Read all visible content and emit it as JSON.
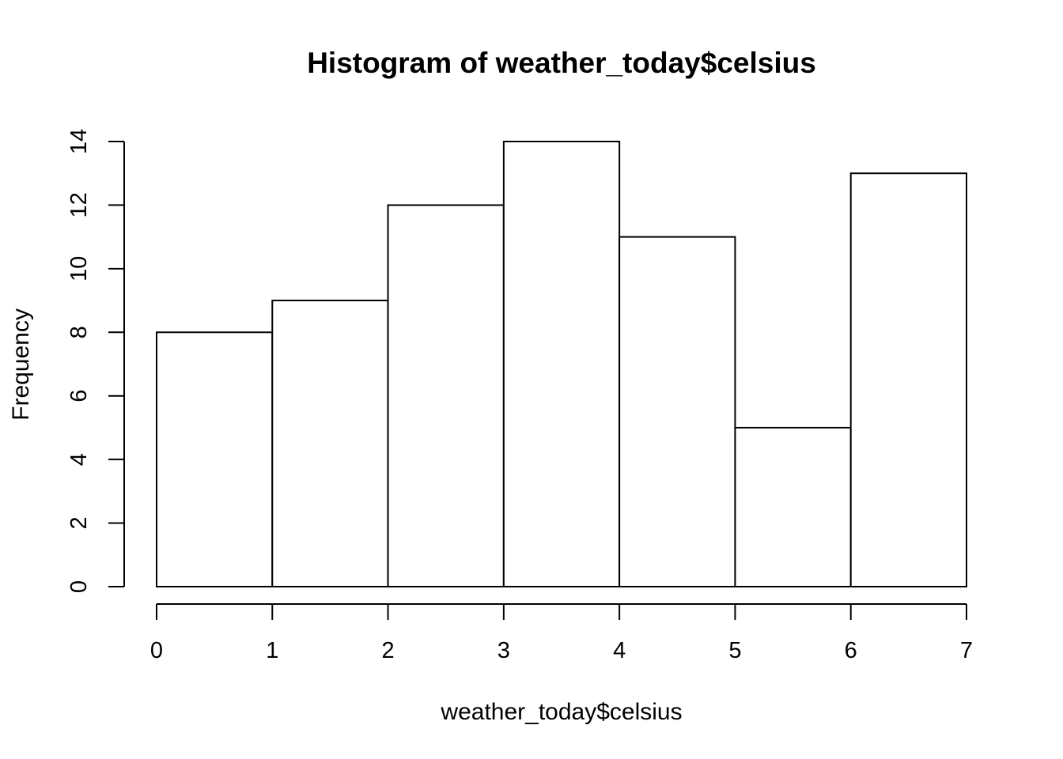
{
  "chart_data": {
    "type": "bar",
    "title": "Histogram of weather_today$celsius",
    "xlabel": "weather_today$celsius",
    "ylabel": "Frequency",
    "bins": [
      [
        0,
        1
      ],
      [
        1,
        2
      ],
      [
        2,
        3
      ],
      [
        3,
        4
      ],
      [
        4,
        5
      ],
      [
        5,
        6
      ],
      [
        6,
        7
      ]
    ],
    "values": [
      8,
      9,
      12,
      14,
      11,
      5,
      13
    ],
    "xlim": [
      0,
      7
    ],
    "ylim": [
      0,
      14
    ],
    "x_ticks": [
      "0",
      "1",
      "2",
      "3",
      "4",
      "5",
      "6",
      "7"
    ],
    "y_ticks": [
      "0",
      "2",
      "4",
      "6",
      "8",
      "10",
      "12",
      "14"
    ],
    "grid": false,
    "legend": "none",
    "colors": {
      "bar_fill": "#ffffff",
      "bar_stroke": "#000000"
    }
  }
}
